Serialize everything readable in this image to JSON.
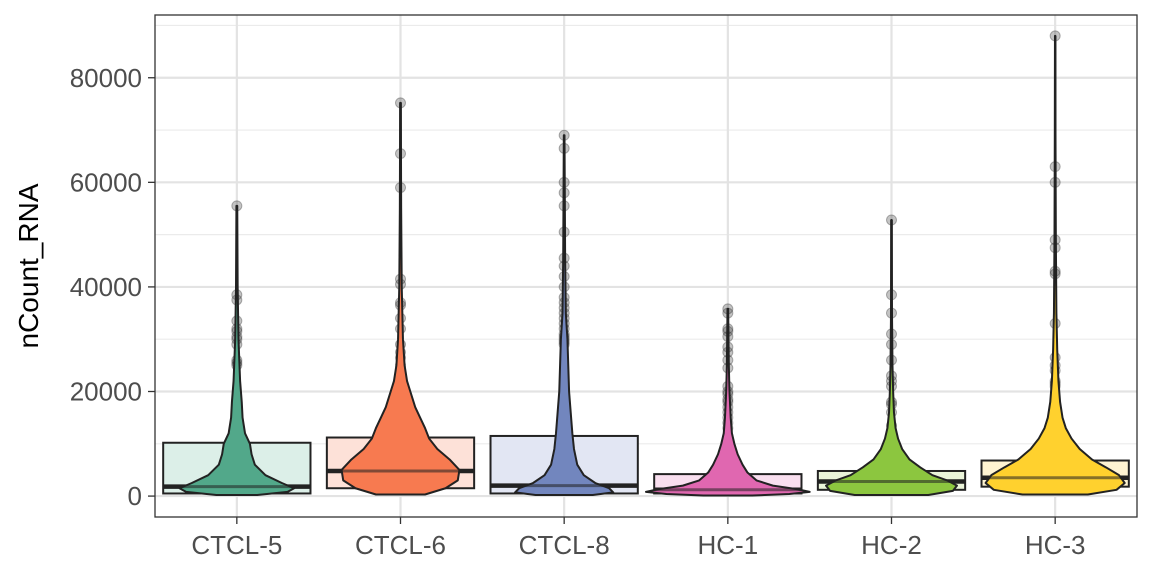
{
  "chart_data": {
    "type": "violin-box",
    "title": "",
    "xlabel": "",
    "ylabel": "nCount_RNA",
    "ylim": [
      -4000,
      92000
    ],
    "yticks": [
      0,
      20000,
      40000,
      60000,
      80000
    ],
    "y_minor_ticks": [
      10000,
      30000,
      50000,
      70000,
      90000
    ],
    "grid": true,
    "legend": "none",
    "categories": [
      "CTCL-5",
      "CTCL-6",
      "CTCL-8",
      "HC-1",
      "HC-2",
      "HC-3"
    ],
    "colors": [
      "#52a88a",
      "#f77a50",
      "#7286be",
      "#e067b0",
      "#8cc63f",
      "#ffd12e"
    ],
    "box_fill_colors": [
      "#dcefe8",
      "#fde1d8",
      "#e2e6f3",
      "#f9dfef",
      "#eaf4d9",
      "#fff4d2"
    ],
    "series": [
      {
        "category": "CTCL-5",
        "box": {
          "q1": 500,
          "median": 1800,
          "q3": 10200
        },
        "whisker": [
          300,
          55500
        ],
        "outliers": [
          25000,
          25500,
          26000,
          29000,
          30000,
          30500,
          31500,
          32000,
          33500,
          37500,
          38500,
          55500
        ],
        "violin": [
          [
            200,
            0.25
          ],
          [
            800,
            0.62
          ],
          [
            1500,
            0.7
          ],
          [
            2500,
            0.55
          ],
          [
            4000,
            0.35
          ],
          [
            6000,
            0.22
          ],
          [
            8000,
            0.18
          ],
          [
            10000,
            0.16
          ],
          [
            12000,
            0.1
          ],
          [
            15000,
            0.07
          ],
          [
            18000,
            0.06
          ],
          [
            22000,
            0.04
          ],
          [
            26000,
            0.03
          ],
          [
            30000,
            0.02
          ],
          [
            40000,
            0.01
          ],
          [
            55500,
            0.005
          ]
        ]
      },
      {
        "category": "CTCL-6",
        "box": {
          "q1": 1500,
          "median": 4800,
          "q3": 11200
        },
        "whisker": [
          400,
          75200
        ],
        "outliers": [
          25000,
          26500,
          27500,
          29000,
          32000,
          34000,
          36500,
          37000,
          40500,
          41500,
          59000,
          65500,
          75200
        ],
        "violin": [
          [
            300,
            0.3
          ],
          [
            1500,
            0.55
          ],
          [
            3000,
            0.7
          ],
          [
            5000,
            0.72
          ],
          [
            7000,
            0.6
          ],
          [
            9000,
            0.45
          ],
          [
            11000,
            0.35
          ],
          [
            13000,
            0.3
          ],
          [
            15000,
            0.24
          ],
          [
            17000,
            0.18
          ],
          [
            20000,
            0.12
          ],
          [
            22000,
            0.08
          ],
          [
            25000,
            0.05
          ],
          [
            30000,
            0.03
          ],
          [
            40000,
            0.015
          ],
          [
            55000,
            0.008
          ],
          [
            75200,
            0.004
          ]
        ]
      },
      {
        "category": "CTCL-8",
        "box": {
          "q1": 500,
          "median": 2000,
          "q3": 11500
        },
        "whisker": [
          300,
          69000
        ],
        "outliers": [
          29000,
          29500,
          30000,
          30500,
          31000,
          32000,
          33000,
          34000,
          35000,
          36000,
          37000,
          38000,
          40000,
          42000,
          44000,
          45500,
          50500,
          55500,
          58000,
          60000,
          66500,
          69000
        ],
        "violin": [
          [
            200,
            0.35
          ],
          [
            700,
            0.6
          ],
          [
            1500,
            0.55
          ],
          [
            2500,
            0.38
          ],
          [
            4000,
            0.24
          ],
          [
            6000,
            0.16
          ],
          [
            9000,
            0.12
          ],
          [
            12000,
            0.1
          ],
          [
            16000,
            0.08
          ],
          [
            20000,
            0.06
          ],
          [
            25000,
            0.05
          ],
          [
            30000,
            0.04
          ],
          [
            35000,
            0.02
          ],
          [
            45000,
            0.012
          ],
          [
            60000,
            0.007
          ],
          [
            69000,
            0.004
          ]
        ]
      },
      {
        "category": "HC-1",
        "box": {
          "q1": 500,
          "median": 1200,
          "q3": 4200
        },
        "whisker": [
          200,
          35800
        ],
        "outliers": [
          10500,
          11000,
          11500,
          13000,
          14000,
          15000,
          16000,
          17000,
          18000,
          18500,
          19500,
          20000,
          21000,
          24500,
          26000,
          27500,
          28500,
          30500,
          31500,
          32000,
          35000,
          35800
        ],
        "violin": [
          [
            100,
            0.3
          ],
          [
            400,
            0.75
          ],
          [
            800,
            1.0
          ],
          [
            1300,
            0.85
          ],
          [
            2000,
            0.55
          ],
          [
            3000,
            0.35
          ],
          [
            4500,
            0.24
          ],
          [
            6000,
            0.18
          ],
          [
            8000,
            0.12
          ],
          [
            10000,
            0.08
          ],
          [
            12000,
            0.05
          ],
          [
            15000,
            0.035
          ],
          [
            20000,
            0.02
          ],
          [
            25000,
            0.012
          ],
          [
            30000,
            0.008
          ],
          [
            35800,
            0.004
          ]
        ]
      },
      {
        "category": "HC-2",
        "box": {
          "q1": 1200,
          "median": 2800,
          "q3": 4800
        },
        "whisker": [
          200,
          52800
        ],
        "outliers": [
          10500,
          11000,
          12000,
          13500,
          16000,
          17500,
          18000,
          21000,
          22000,
          23000,
          26000,
          29000,
          31000,
          35000,
          38500,
          52800
        ],
        "violin": [
          [
            200,
            0.45
          ],
          [
            1000,
            0.75
          ],
          [
            2000,
            0.8
          ],
          [
            3000,
            0.68
          ],
          [
            4000,
            0.5
          ],
          [
            5500,
            0.35
          ],
          [
            7000,
            0.22
          ],
          [
            9000,
            0.13
          ],
          [
            11000,
            0.08
          ],
          [
            13000,
            0.05
          ],
          [
            16000,
            0.03
          ],
          [
            20000,
            0.02
          ],
          [
            25000,
            0.012
          ],
          [
            35000,
            0.006
          ],
          [
            52800,
            0.003
          ]
        ]
      },
      {
        "category": "HC-3",
        "box": {
          "q1": 1800,
          "median": 3500,
          "q3": 6800
        },
        "whisker": [
          300,
          88000
        ],
        "outliers": [
          15500,
          16000,
          17000,
          21000,
          21500,
          22000,
          24000,
          25000,
          26500,
          33000,
          42500,
          43000,
          47500,
          49000,
          60000,
          63000,
          88000
        ],
        "violin": [
          [
            300,
            0.4
          ],
          [
            1200,
            0.75
          ],
          [
            2500,
            0.85
          ],
          [
            4000,
            0.78
          ],
          [
            5500,
            0.62
          ],
          [
            7000,
            0.45
          ],
          [
            9000,
            0.3
          ],
          [
            11000,
            0.2
          ],
          [
            13000,
            0.13
          ],
          [
            15000,
            0.09
          ],
          [
            18000,
            0.06
          ],
          [
            22000,
            0.04
          ],
          [
            28000,
            0.025
          ],
          [
            35000,
            0.015
          ],
          [
            50000,
            0.008
          ],
          [
            70000,
            0.004
          ],
          [
            88000,
            0.002
          ]
        ]
      }
    ]
  }
}
